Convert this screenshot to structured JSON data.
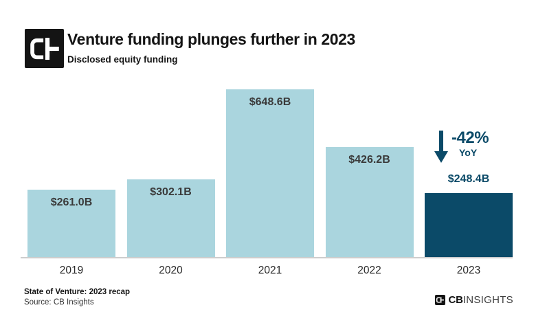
{
  "header": {
    "title": "Venture funding plunges further in 2023",
    "subtitle": "Disclosed equity funding"
  },
  "chart_data": {
    "type": "bar",
    "title": "Venture funding plunges further in 2023",
    "subtitle": "Disclosed equity funding",
    "categories": [
      "2019",
      "2020",
      "2021",
      "2022",
      "2023"
    ],
    "values": [
      261.0,
      302.1,
      648.6,
      426.2,
      248.4
    ],
    "value_labels": [
      "$261.0B",
      "$302.1B",
      "$648.6B",
      "$426.2B",
      "$248.4B"
    ],
    "bar_colors": [
      "#aad5de",
      "#aad5de",
      "#aad5de",
      "#aad5de",
      "#0b4a68"
    ],
    "label_positions": [
      "inside",
      "inside",
      "inside",
      "inside",
      "above"
    ],
    "label_colors": [
      "#3a3a3a",
      "#3a3a3a",
      "#3a3a3a",
      "#3a3a3a",
      "#0b4a68"
    ],
    "xlabel": "",
    "ylabel": "",
    "ylim": [
      0,
      650
    ],
    "grid": false,
    "legend": false,
    "annotation": {
      "delta": "-42%",
      "period": "YoY",
      "icon": "down-arrow-icon",
      "color": "#0b4a68"
    }
  },
  "colors": {
    "bar_default": "#aad5de",
    "bar_highlight": "#0b4a68",
    "accent": "#0b4a68",
    "axis_line": "#cdcdcd",
    "text_dark": "#141414"
  },
  "footer": {
    "report": "State of Venture: 2023 recap",
    "source": "Source: CB Insights",
    "brand_cb": "CB",
    "brand_insights": "INSIGHTS"
  }
}
